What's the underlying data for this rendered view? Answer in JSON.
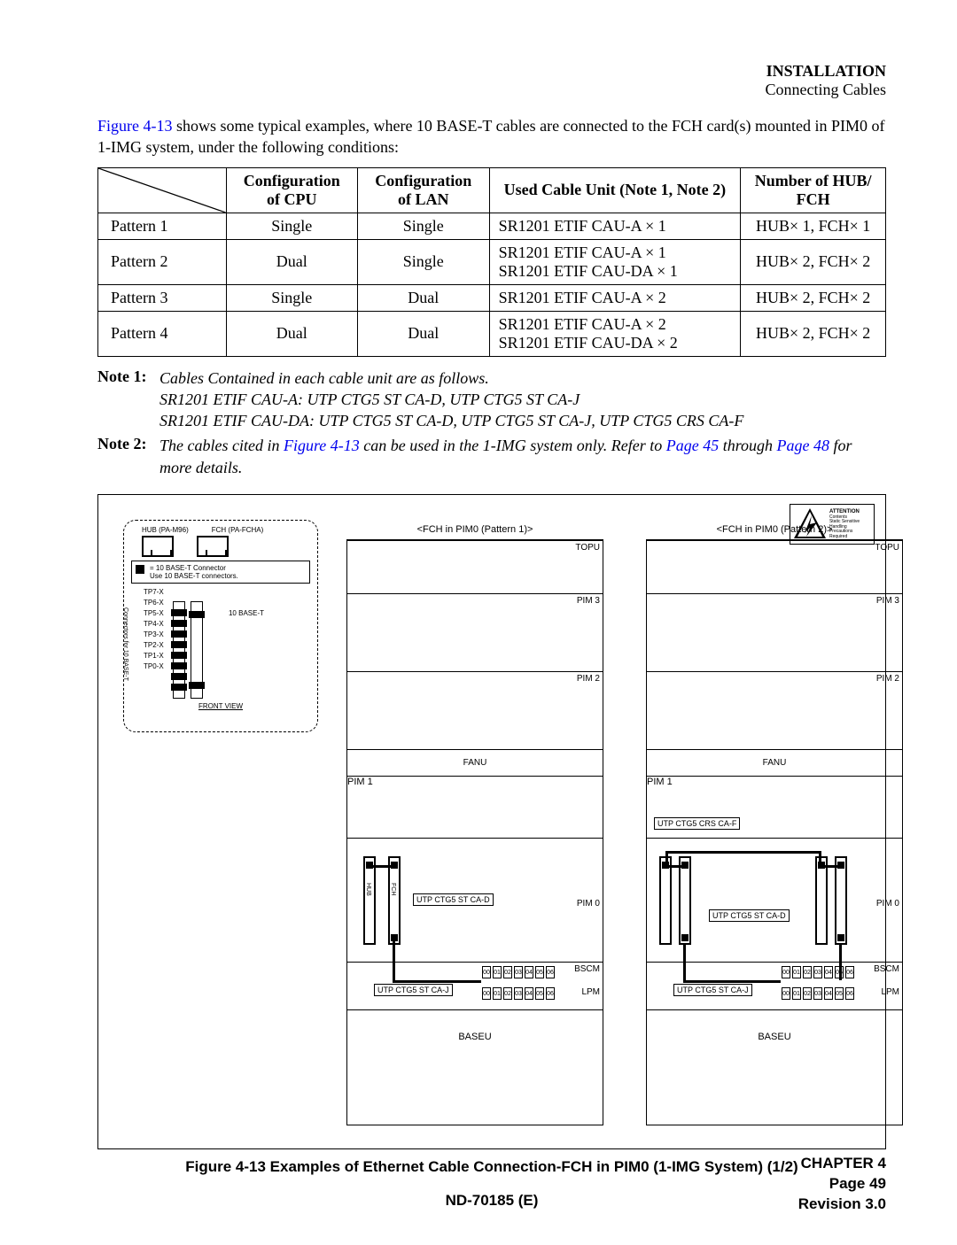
{
  "header": {
    "title": "INSTALLATION",
    "subtitle": "Connecting Cables"
  },
  "intro": {
    "link": "Figure 4-13",
    "rest": " shows some typical examples, where 10 BASE-T cables are connected to the FCH card(s) mounted in PIM0 of 1-IMG system, under the following conditions:"
  },
  "table": {
    "headers": {
      "cfg_cpu": "Configuration of CPU",
      "cfg_lan": "Configuration of LAN",
      "cable": "Used Cable Unit (Note 1, Note 2)",
      "hub": "Number of  HUB/ FCH"
    },
    "rows": [
      {
        "name": "Pattern 1",
        "cpu": "Single",
        "lan": "Single",
        "cable": "SR1201 ETIF CAU-A × 1",
        "hub": "HUB× 1, FCH× 1"
      },
      {
        "name": "Pattern 2",
        "cpu": "Dual",
        "lan": "Single",
        "cable": "SR1201 ETIF CAU-A × 1\nSR1201 ETIF CAU-DA × 1",
        "hub": "HUB× 2, FCH× 2"
      },
      {
        "name": "Pattern 3",
        "cpu": "Single",
        "lan": "Dual",
        "cable": "SR1201 ETIF CAU-A × 2",
        "hub": "HUB× 2, FCH× 2"
      },
      {
        "name": "Pattern 4",
        "cpu": "Dual",
        "lan": "Dual",
        "cable": "SR1201 ETIF CAU-A × 2\nSR1201 ETIF CAU-DA × 2",
        "hub": "HUB× 2, FCH× 2"
      }
    ]
  },
  "notes": {
    "n1_label": "Note 1:",
    "n1_body": "Cables Contained in each cable unit are as follows.\nSR1201 ETIF CAU-A: UTP CTG5 ST CA-D, UTP CTG5 ST CA-J\nSR1201 ETIF CAU-DA: UTP CTG5 ST CA-D, UTP CTG5 ST CA-J, UTP CTG5 CRS CA-F",
    "n2_label": "Note 2:",
    "n2_pre": "The cables cited in ",
    "n2_link1": "Figure 4-13",
    "n2_mid": " can be used in the 1-IMG system only. Refer to ",
    "n2_link2": "Page 45",
    "n2_mid2": " through ",
    "n2_link3": "Page 48",
    "n2_post": " for more details."
  },
  "figure": {
    "legend": {
      "hub": "HUB (PA-M96)",
      "fch": "FCH (PA-FCHA)",
      "note_a": "= 10  BASE-T Connector",
      "note_b": "Use 10 BASE-T connectors.",
      "tp": [
        "TP7-X",
        "TP6-X",
        "TP5-X",
        "TP4-X",
        "TP3-X",
        "TP2-X",
        "TP1-X",
        "TP0-X"
      ],
      "side": "Connectors for 10 BASE-T",
      "baset": "10 BASE-T",
      "front": "FRONT VIEW"
    },
    "esd": {
      "attention": "ATTENTION",
      "body": "Contents\nStatic Sensitive\nHandling\nPrecautions Required"
    },
    "racks": {
      "r1_title": "<FCH in PIM0 (Pattern 1)>",
      "r2_title": "<FCH in PIM0 (Pattern 2)>",
      "labels": {
        "topu": "TOPU",
        "pim3": "PIM 3",
        "pim2": "PIM 2",
        "pim1": "PIM 1",
        "pim0": "PIM 0",
        "fanu": "FANU",
        "bscm": "BSCM",
        "lpm": "LPM",
        "baseu": "BASEU"
      },
      "tags": {
        "cad": "UTP CTG5 ST CA-D",
        "caj": "UTP CTG5 ST CA-J",
        "crs": "UTP CTG5 CRS CA-F"
      },
      "slot_nums": [
        "00",
        "01",
        "02",
        "03",
        "04",
        "05",
        "06"
      ],
      "cards": {
        "hub": "HUB",
        "fch": "FCH"
      }
    },
    "caption": "Figure 4-13   Examples of Ethernet Cable Connection-FCH in PIM0 (1-IMG System) (1/2)"
  },
  "footer": {
    "docid": "ND-70185 (E)",
    "chapter": "CHAPTER 4",
    "page": "Page 49",
    "rev": "Revision 3.0"
  }
}
